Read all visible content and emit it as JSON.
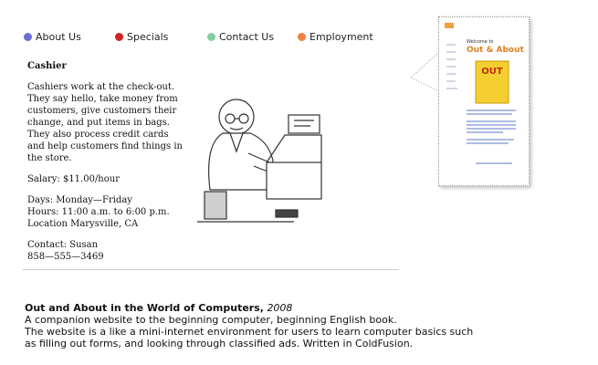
{
  "nav": [
    "About Us",
    "Specials",
    "Contact Us",
    "Employment"
  ],
  "job": {
    "title": "Cashier",
    "description": "Cashiers work at the check-out. They say hello, take money from customers, give customers their change, and put items in bags. They also process credit cards and help customers find things in the store.",
    "salary": "Salary: $11.00/hour",
    "days": "Days: Monday—Friday",
    "hours": "Hours: 11:00 a.m. to 6:00 p.m.",
    "location": "Location Marysville, CA",
    "contact": "Contact: Susan",
    "phone": "858—555—3469"
  },
  "thumbnail": {
    "welcome": "Welcome to",
    "site_title": "Out & About",
    "book": "OUT"
  },
  "caption": {
    "title": "Out and About in the World of Computers,",
    "year": "2008",
    "lines": [
      "A companion website to the beginning computer, beginning English book.",
      "The website is a like a mini-internet environment for users to learn computer basics such",
      "as filling out forms, and looking through classified ads. Written in ColdFusion."
    ]
  }
}
